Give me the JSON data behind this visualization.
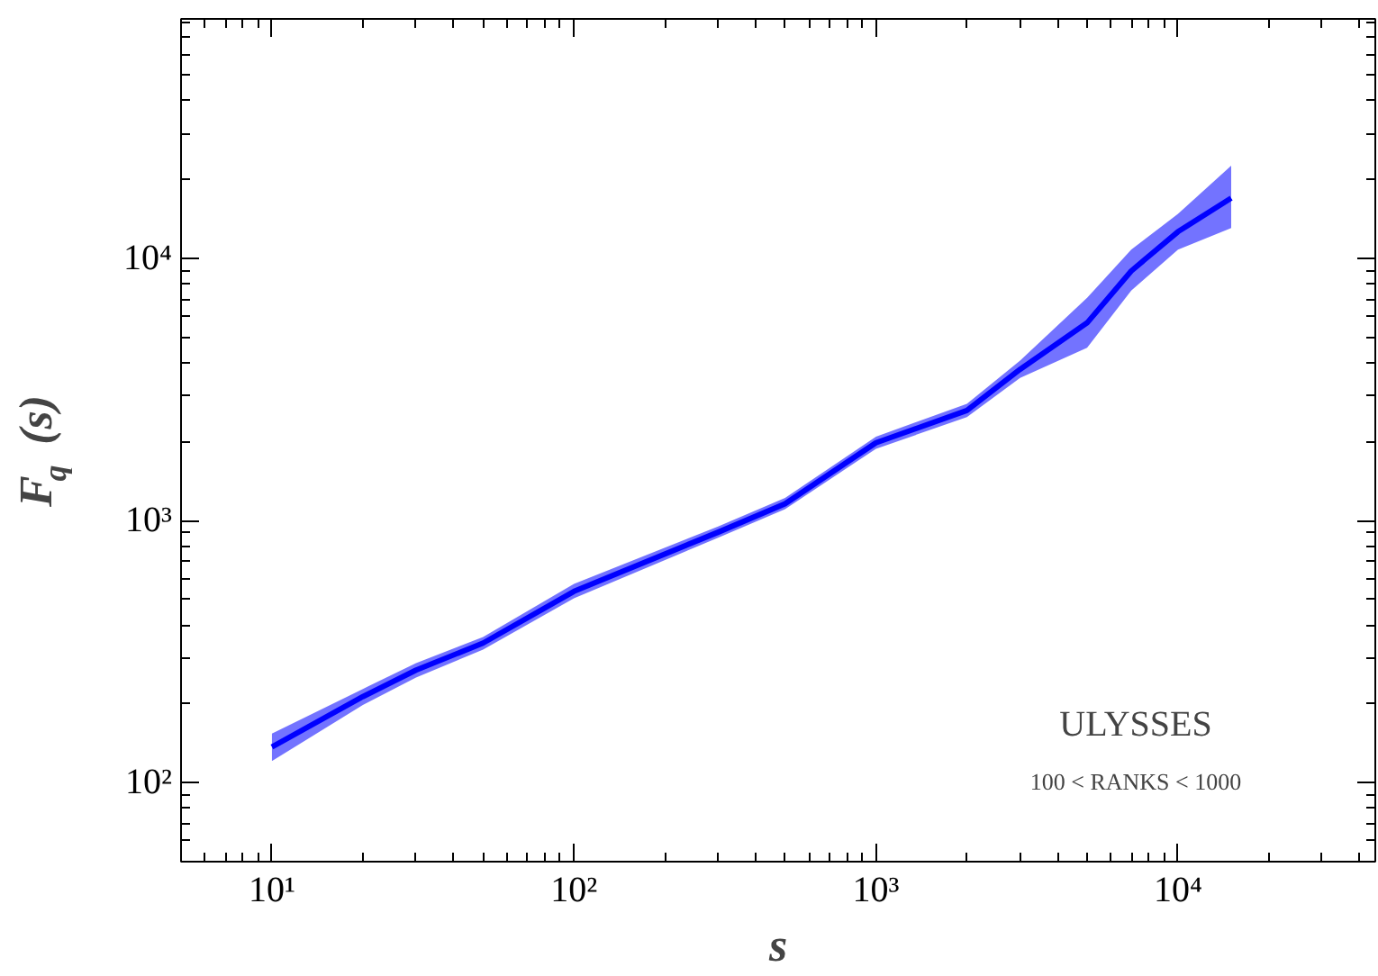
{
  "chart_data": {
    "type": "line",
    "xlabel": "s",
    "ylabel": "F$_{q}$ (s)",
    "log": "xy",
    "grid": false,
    "marker": "none",
    "xlim": [
      5,
      45000
    ],
    "ylim": [
      50,
      82000
    ],
    "xticks": [
      {
        "value": 10,
        "label": "10¹"
      },
      {
        "value": 100,
        "label": "10²"
      },
      {
        "value": 1000,
        "label": "10³"
      },
      {
        "value": 10000,
        "label": "10⁴"
      }
    ],
    "yticks": [
      {
        "value": 100,
        "label": "10²"
      },
      {
        "value": 1000,
        "label": "10³"
      },
      {
        "value": 10000,
        "label": "10⁴"
      }
    ],
    "annotations": [
      "ULYSSES",
      "100 < RANKS < 1000"
    ],
    "series": [
      {
        "color": "#0000ff",
        "x": [
          10,
          20,
          30,
          50,
          100,
          300,
          500,
          1000,
          2000,
          3000,
          5000,
          7000,
          10000,
          15000
        ],
        "values": [
          137,
          213,
          269,
          341,
          537,
          903,
          1160,
          1982,
          2630,
          3775,
          5680,
          8960,
          12650,
          17000
        ],
        "lower": [
          121,
          198,
          252,
          322,
          505,
          860,
          1105,
          1880,
          2480,
          3500,
          4560,
          7540,
          10800,
          13060
        ],
        "upper": [
          154,
          228,
          286,
          360,
          573,
          950,
          1220,
          2090,
          2790,
          4080,
          7080,
          10800,
          14800,
          22600
        ]
      }
    ]
  }
}
